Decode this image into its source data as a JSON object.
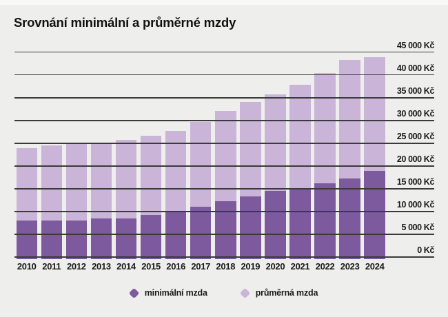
{
  "title": "Srovnání minimální a průměrné mzdy",
  "colors": {
    "background": "#eeeeec",
    "top_strip": "#f8f8f7",
    "gridline": "#3a3a3a",
    "text": "#1a1a1a",
    "minimum_wage": "#7d5a9d",
    "average_wage": "#cab4d8"
  },
  "chart_data": {
    "type": "bar",
    "title": "Srovnání minimální a průměrné mzdy",
    "categories": [
      "2010",
      "2011",
      "2012",
      "2013",
      "2014",
      "2015",
      "2016",
      "2017",
      "2018",
      "2019",
      "2020",
      "2021",
      "2022",
      "2023",
      "2024"
    ],
    "series": [
      {
        "name": "minimální mzda",
        "color": "#7d5a9d",
        "values": [
          8000,
          8000,
          8000,
          8500,
          8500,
          9200,
          9900,
          11000,
          12200,
          13350,
          14600,
          15200,
          16200,
          17300,
          18900
        ]
      },
      {
        "name": "průměrná mzda",
        "color": "#cab4d8",
        "values": [
          23864,
          24455,
          25067,
          25035,
          25768,
          26591,
          27764,
          29638,
          32051,
          34125,
          35662,
          37839,
          40353,
          43341,
          43900
        ]
      }
    ],
    "xlabel": "",
    "ylabel": "",
    "ylim": [
      0,
      45000
    ],
    "ytick_step": 5000,
    "yticks": [
      "0 Kč",
      "5 000 Kč",
      "10 000 Kč",
      "15 000 Kč",
      "20 000 Kč",
      "25 000 Kč",
      "30 000 Kč",
      "35 000 Kč",
      "40 000 Kč",
      "45 000 Kč"
    ],
    "grid": true,
    "bar_style": "overlapped",
    "legend_position": "bottom"
  },
  "legend": {
    "items": [
      {
        "label": "minimální mzda",
        "color": "#7d5a9d"
      },
      {
        "label": "průměrná mzda",
        "color": "#cab4d8"
      }
    ]
  }
}
